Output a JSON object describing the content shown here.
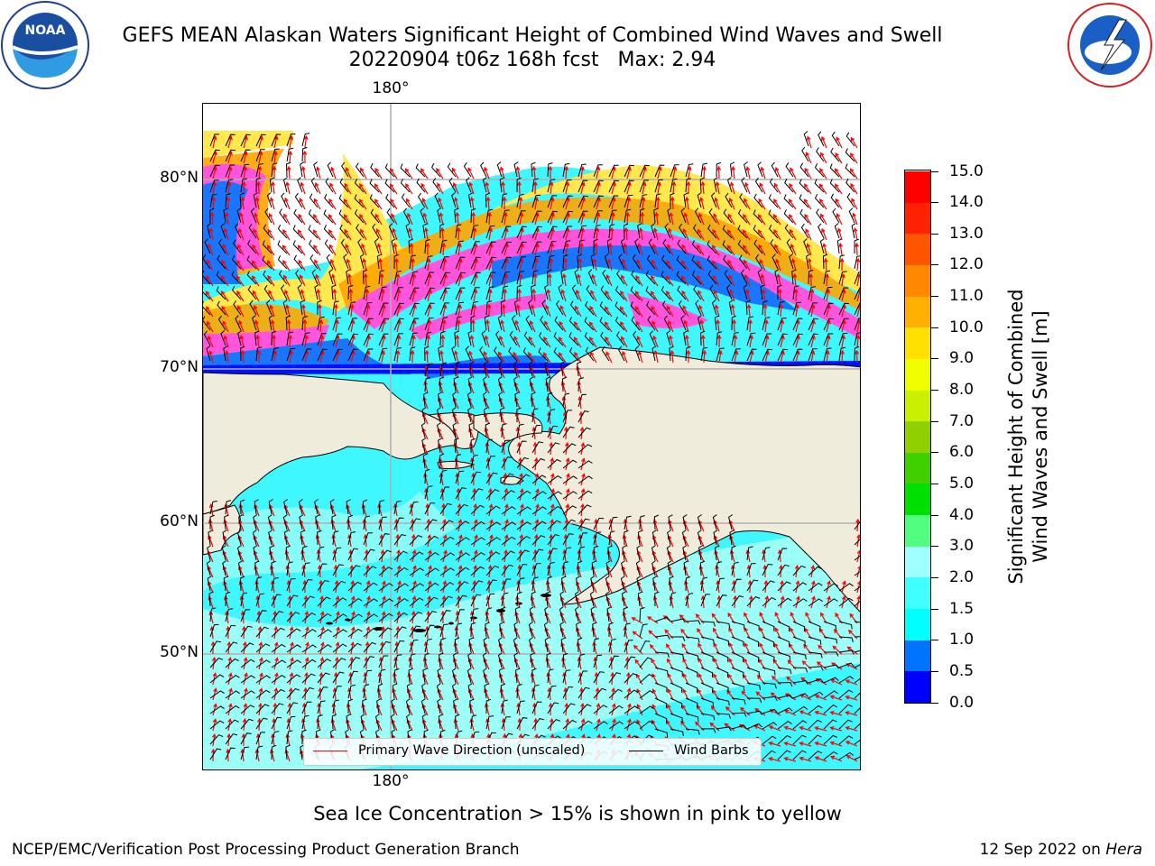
{
  "header": {
    "title_line1": "GEFS MEAN Alaskan Waters Significant Height of Combined Wind Waves and Swell",
    "title_line2": "20220904 t06z 168h fcst   Max: 2.94"
  },
  "logos": {
    "noaa_text": "NOAA",
    "noaa_ring": "NATIONAL OCEANIC AND ATMOSPHERIC ADMINISTRATION · U.S. DEPARTMENT OF COMMERCE",
    "nws_ring": "NATIONAL WEATHER SERVICE"
  },
  "map": {
    "top_lon_label": "180°",
    "bottom_lon_label": "180°",
    "lat_labels": [
      "80°N",
      "70°N",
      "60°N",
      "50°N"
    ],
    "land_color": "#efecdc",
    "ocean_color": "#3ff8ff",
    "ice_note_colors": [
      "#ff55dd",
      "#ffa500",
      "#ffe94f"
    ]
  },
  "legend": {
    "wave_label": "Primary Wave Direction (unscaled)",
    "wave_color": "#ff0000",
    "barb_label": "Wind Barbs",
    "barb_color": "#000000"
  },
  "colorbar": {
    "title_line1": "Significant Height of Combined",
    "title_line2": "Wind Waves and Swell [m]",
    "tick_labels": [
      "0.0",
      "0.5",
      "1.0",
      "1.5",
      "2.0",
      "3.0",
      "4.0",
      "5.0",
      "6.0",
      "7.0",
      "8.0",
      "9.0",
      "10.0",
      "11.0",
      "12.0",
      "13.0",
      "14.0",
      "15.0"
    ],
    "colors": [
      "#0000ff",
      "#0073ff",
      "#00ffff",
      "#40ffff",
      "#a0ffff",
      "#50ff80",
      "#00e000",
      "#40d000",
      "#90d000",
      "#c8f000",
      "#f0ff00",
      "#ffe000",
      "#ffb000",
      "#ff8800",
      "#ff5500",
      "#ff2200",
      "#ff0000"
    ]
  },
  "footer": {
    "caption": "Sea Ice Concentration > 15% is shown in pink to yellow",
    "left": "NCEP/EMC/Verification Post Processing Product Generation Branch",
    "right_date": "12 Sep 2022 on ",
    "right_host": "Hera"
  }
}
